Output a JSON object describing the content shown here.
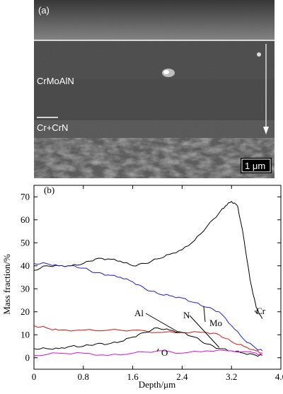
{
  "sem": {
    "panel_label": "(a)",
    "coating_label": "CrMoAlN",
    "interlayer_label": "Cr+CrN",
    "scalebar_label": "1 μm"
  },
  "chart_data": {
    "type": "line",
    "panel_label": "(b)",
    "xlabel": "Depth/μm",
    "ylabel": "Mass fraction/%",
    "xlim": [
      0,
      4.0
    ],
    "ylim": [
      -5,
      75
    ],
    "xticks": [
      "0",
      "0.8",
      "1.6",
      "2.4",
      "3.2",
      "4.0"
    ],
    "yticks": [
      "0",
      "10",
      "20",
      "30",
      "40",
      "50",
      "60",
      "70"
    ],
    "series": [
      {
        "name": "Cr",
        "color": "#000000",
        "x": [
          0,
          0.2,
          0.4,
          0.6,
          0.8,
          1.0,
          1.2,
          1.4,
          1.6,
          1.8,
          2.0,
          2.2,
          2.4,
          2.6,
          2.8,
          3.0,
          3.1,
          3.2,
          3.3,
          3.4,
          3.5,
          3.6,
          3.7
        ],
        "y": [
          38,
          40,
          40,
          40,
          41,
          43,
          43,
          42,
          40,
          41,
          43,
          45,
          47,
          51,
          57,
          63,
          66,
          68,
          66,
          52,
          34,
          22,
          17
        ]
      },
      {
        "name": "Mo",
        "color": "#1f1fd6",
        "x": [
          0,
          0.2,
          0.4,
          0.6,
          0.8,
          1.0,
          1.2,
          1.4,
          1.6,
          1.8,
          2.0,
          2.2,
          2.4,
          2.6,
          2.8,
          3.0,
          3.2,
          3.4,
          3.6,
          3.7
        ],
        "y": [
          41,
          41,
          40,
          40,
          39,
          37,
          36,
          35,
          33,
          30,
          28,
          27,
          26,
          24,
          22,
          20,
          14,
          8,
          4,
          3
        ]
      },
      {
        "name": "N",
        "color": "#dd1111",
        "x": [
          0,
          0.2,
          0.4,
          0.8,
          1.2,
          1.6,
          2.0,
          2.4,
          2.8,
          3.0,
          3.2,
          3.4,
          3.6,
          3.7
        ],
        "y": [
          14,
          13,
          12,
          12,
          12,
          12,
          11,
          11,
          11,
          10,
          7,
          5,
          3,
          2
        ]
      },
      {
        "name": "Al",
        "color": "#000000",
        "x": [
          0,
          0.2,
          0.4,
          0.6,
          0.8,
          1.0,
          1.2,
          1.4,
          1.6,
          1.8,
          2.0,
          2.2,
          2.4,
          2.6,
          2.8,
          3.0,
          3.2,
          3.4,
          3.6,
          3.7
        ],
        "y": [
          4,
          4,
          4,
          5,
          5,
          6,
          6,
          7,
          9,
          11,
          13,
          12,
          11,
          9,
          6,
          4,
          3,
          2,
          1,
          1
        ]
      },
      {
        "name": "O",
        "color": "#dd11dd",
        "x": [
          0,
          0.4,
          0.8,
          1.2,
          1.6,
          2.0,
          2.4,
          2.8,
          3.2,
          3.6,
          3.7
        ],
        "y": [
          1,
          2,
          2,
          1,
          2,
          3,
          2,
          3,
          3,
          2,
          1
        ]
      }
    ],
    "annotations": [
      "Mo",
      "Cr",
      "Al",
      "N",
      "O"
    ]
  }
}
